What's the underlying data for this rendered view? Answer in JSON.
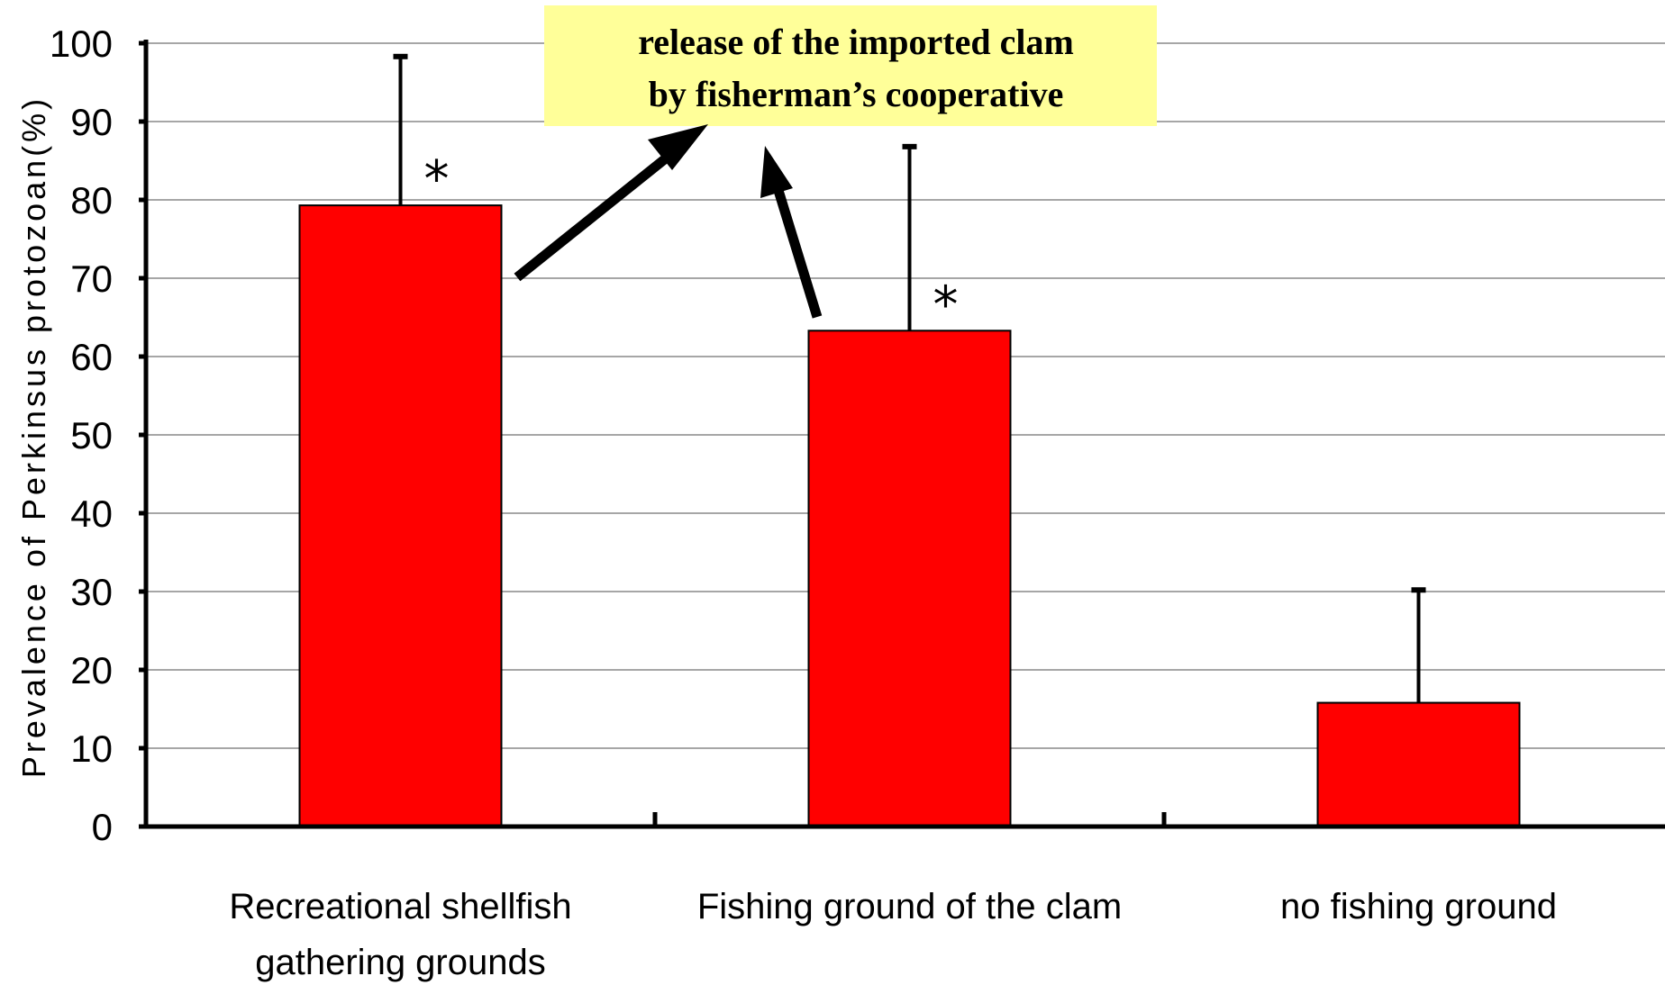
{
  "chart_data": {
    "type": "bar",
    "categories": [
      [
        "Recreational shellfish",
        "gathering grounds"
      ],
      [
        "Fishing ground of the clam"
      ],
      [
        "no fishing ground"
      ]
    ],
    "values": [
      79.3,
      63.3,
      15.8
    ],
    "error_upper": [
      98.3,
      86.8,
      30.2
    ],
    "significance_marks": [
      "*",
      "*",
      ""
    ],
    "ylabel": "Prevalence of Perkinsus protozoan(%)",
    "ylim": [
      0,
      100
    ],
    "yticks": [
      0,
      10,
      20,
      30,
      40,
      50,
      60,
      70,
      80,
      90,
      100
    ],
    "grid": true,
    "colors": {
      "bar": "#ff0000",
      "bar_edge": "#000000",
      "grid": "#888888",
      "annotation_bg": "#ffff99"
    },
    "annotation": {
      "lines": [
        "release of the imported clam",
        "by fisherman’s cooperative"
      ]
    }
  }
}
